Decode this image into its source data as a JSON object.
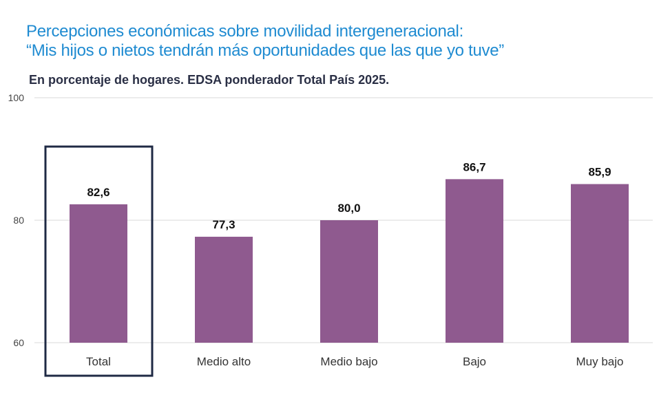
{
  "chart_data": {
    "type": "bar",
    "title": [
      "Percepciones económicas sobre movilidad intergeneracional:",
      "“Mis hijos o nietos tendrán más oportunidades que las que yo tuve”"
    ],
    "subtitle": "En porcentaje de hogares. EDSA ponderador Total País 2025.",
    "categories": [
      "Total",
      "Medio alto",
      "Medio bajo",
      "Bajo",
      "Muy bajo"
    ],
    "values": [
      82.6,
      77.3,
      80.0,
      86.7,
      85.9
    ],
    "value_labels": [
      "82,6",
      "77,3",
      "80,0",
      "86,7",
      "85,9"
    ],
    "ylim": [
      60,
      100
    ],
    "yticks": [
      60,
      80,
      100
    ],
    "highlight_category": "Total",
    "grid": true,
    "colors": {
      "bar": "#8f5a8f",
      "grid": "#d9d9d9",
      "highlight_border": "#1f2a44",
      "title": "#1f8bd1"
    }
  }
}
